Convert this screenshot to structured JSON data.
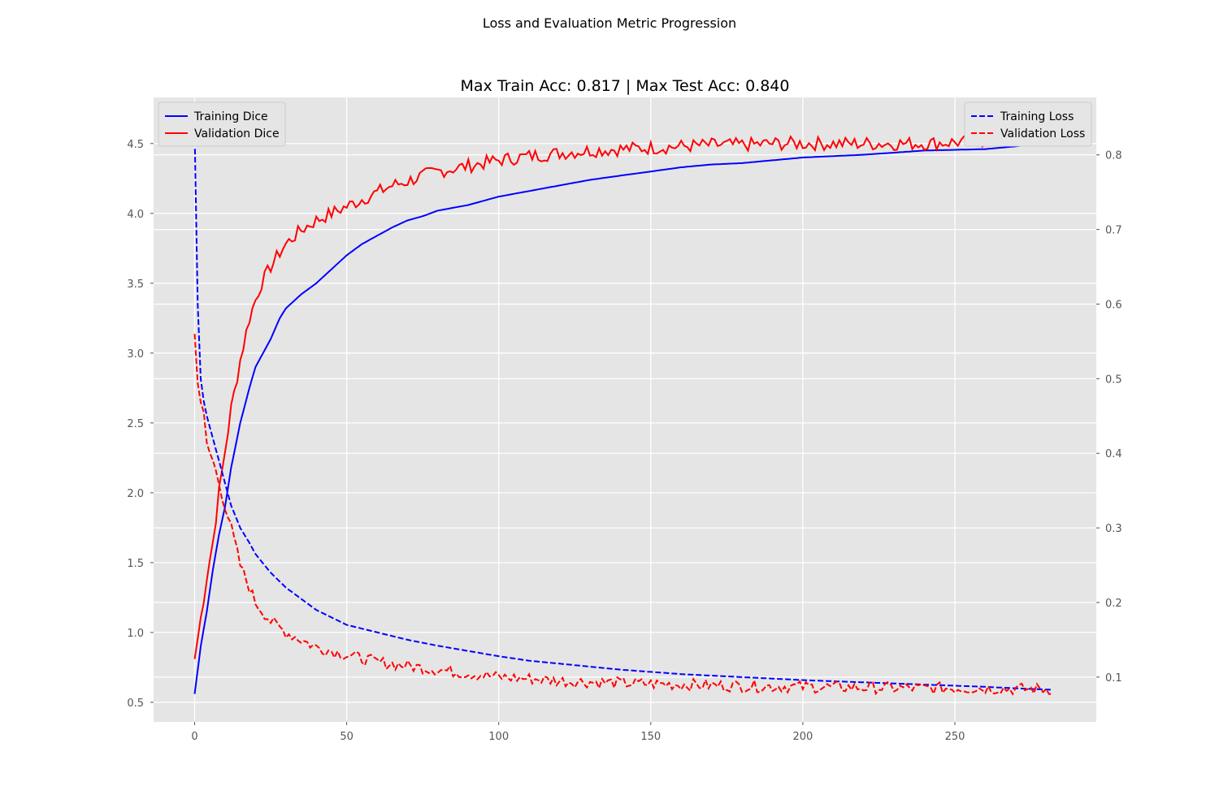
{
  "suptitle": "Loss and Evaluation Metric Progression",
  "chart_data": {
    "type": "line",
    "title": "Max Train Acc: 0.817 | Max Test Acc: 0.840",
    "xlabel": "",
    "ylabel": "",
    "y2label": "",
    "xlim": [
      -13.5,
      296.5
    ],
    "ylim": [
      0.36,
      4.83
    ],
    "y2lim": [
      0.04,
      0.877
    ],
    "x_ticks": [
      0,
      50,
      100,
      150,
      200,
      250
    ],
    "y_ticks": [
      0.5,
      1.0,
      1.5,
      2.0,
      2.5,
      3.0,
      3.5,
      4.0,
      4.5
    ],
    "y2_ticks": [
      0.1,
      0.2,
      0.3,
      0.4,
      0.5,
      0.6,
      0.7,
      0.8
    ],
    "grid": true,
    "epochs": 283,
    "series": [
      {
        "name": "Training Dice",
        "axis": "left",
        "color": "#0000ff",
        "style": "solid",
        "x": [
          0,
          2,
          4,
          6,
          8,
          10,
          12,
          15,
          18,
          20,
          22,
          25,
          28,
          30,
          35,
          40,
          45,
          50,
          55,
          60,
          65,
          70,
          75,
          80,
          90,
          100,
          110,
          120,
          130,
          140,
          150,
          160,
          170,
          180,
          190,
          200,
          220,
          240,
          260,
          270,
          282
        ],
        "y": [
          0.56,
          0.9,
          1.15,
          1.45,
          1.7,
          1.9,
          2.18,
          2.5,
          2.75,
          2.9,
          2.98,
          3.1,
          3.25,
          3.32,
          3.42,
          3.5,
          3.6,
          3.7,
          3.78,
          3.84,
          3.9,
          3.95,
          3.98,
          4.02,
          4.06,
          4.12,
          4.16,
          4.2,
          4.24,
          4.27,
          4.3,
          4.33,
          4.35,
          4.36,
          4.38,
          4.4,
          4.42,
          4.45,
          4.46,
          4.48,
          4.51
        ]
      },
      {
        "name": "Validation Dice",
        "axis": "left",
        "color": "#ff0000",
        "style": "solid",
        "x": [
          0,
          2,
          4,
          6,
          8,
          10,
          12,
          15,
          18,
          20,
          22,
          25,
          28,
          30,
          35,
          40,
          45,
          50,
          55,
          60,
          65,
          70,
          75,
          80,
          90,
          100,
          110,
          120,
          130,
          140,
          150,
          160,
          170,
          180,
          190,
          200,
          220,
          240,
          260,
          270,
          282
        ],
        "y": [
          0.81,
          1.1,
          1.4,
          1.65,
          2.0,
          2.3,
          2.6,
          2.95,
          3.25,
          3.38,
          3.5,
          3.62,
          3.72,
          3.78,
          3.88,
          3.95,
          4.0,
          4.05,
          4.1,
          4.15,
          4.2,
          4.23,
          4.27,
          4.3,
          4.34,
          4.38,
          4.41,
          4.43,
          4.45,
          4.46,
          4.47,
          4.48,
          4.49,
          4.49,
          4.5,
          4.5,
          4.5,
          4.5,
          4.52,
          4.53,
          4.54
        ],
        "noise": 0.05
      },
      {
        "name": "Training Loss",
        "axis": "right",
        "color": "#0000ff",
        "style": "dashed",
        "x": [
          0,
          1,
          2,
          3,
          4,
          6,
          8,
          10,
          12,
          15,
          18,
          20,
          25,
          30,
          35,
          40,
          45,
          50,
          60,
          70,
          80,
          90,
          100,
          110,
          120,
          140,
          160,
          180,
          200,
          220,
          240,
          260,
          270,
          282
        ],
        "y": [
          0.83,
          0.6,
          0.5,
          0.47,
          0.45,
          0.42,
          0.39,
          0.36,
          0.33,
          0.3,
          0.28,
          0.265,
          0.24,
          0.22,
          0.205,
          0.19,
          0.18,
          0.17,
          0.16,
          0.15,
          0.142,
          0.135,
          0.128,
          0.122,
          0.118,
          0.11,
          0.104,
          0.1,
          0.096,
          0.093,
          0.09,
          0.087,
          0.085,
          0.083
        ]
      },
      {
        "name": "Validation Loss",
        "axis": "right",
        "color": "#ff0000",
        "style": "dashed",
        "x": [
          0,
          1,
          2,
          3,
          4,
          6,
          8,
          10,
          12,
          15,
          18,
          20,
          25,
          30,
          35,
          40,
          45,
          50,
          60,
          70,
          80,
          90,
          100,
          110,
          120,
          140,
          160,
          180,
          200,
          220,
          240,
          260,
          270,
          282
        ],
        "y": [
          0.56,
          0.5,
          0.47,
          0.45,
          0.41,
          0.39,
          0.36,
          0.33,
          0.3,
          0.25,
          0.22,
          0.2,
          0.175,
          0.16,
          0.15,
          0.14,
          0.135,
          0.13,
          0.12,
          0.115,
          0.11,
          0.105,
          0.1,
          0.098,
          0.095,
          0.092,
          0.09,
          0.088,
          0.087,
          0.086,
          0.085,
          0.085,
          0.084,
          0.084
        ],
        "noise": 0.008
      }
    ],
    "legends": [
      {
        "position": "upper-left",
        "entries": [
          "Training Dice",
          "Validation Dice"
        ]
      },
      {
        "position": "upper-right",
        "entries": [
          "Training Loss",
          "Validation Loss"
        ]
      }
    ]
  }
}
